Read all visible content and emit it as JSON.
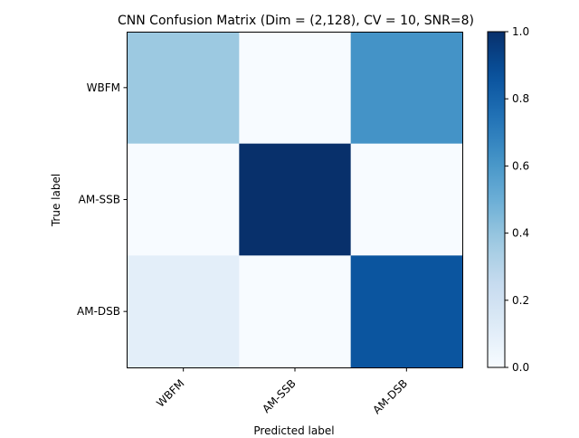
{
  "chart_data": {
    "type": "heatmap",
    "title": "CNN Confusion Matrix (Dim = (2,128), CV = 10, SNR=8)",
    "xlabel": "Predicted label",
    "ylabel": "True label",
    "x_categories": [
      "WBFM",
      "AM-SSB",
      "AM-DSB"
    ],
    "y_categories": [
      "WBFM",
      "AM-SSB",
      "AM-DSB"
    ],
    "values": [
      [
        0.38,
        0.0,
        0.62
      ],
      [
        0.0,
        1.0,
        0.0
      ],
      [
        0.1,
        0.0,
        0.86
      ]
    ],
    "colormap": "Blues",
    "colorbar": {
      "range": [
        0.0,
        1.0
      ],
      "ticks": [
        "0.0",
        "0.2",
        "0.4",
        "0.6",
        "0.8",
        "1.0"
      ]
    },
    "grid": false
  }
}
